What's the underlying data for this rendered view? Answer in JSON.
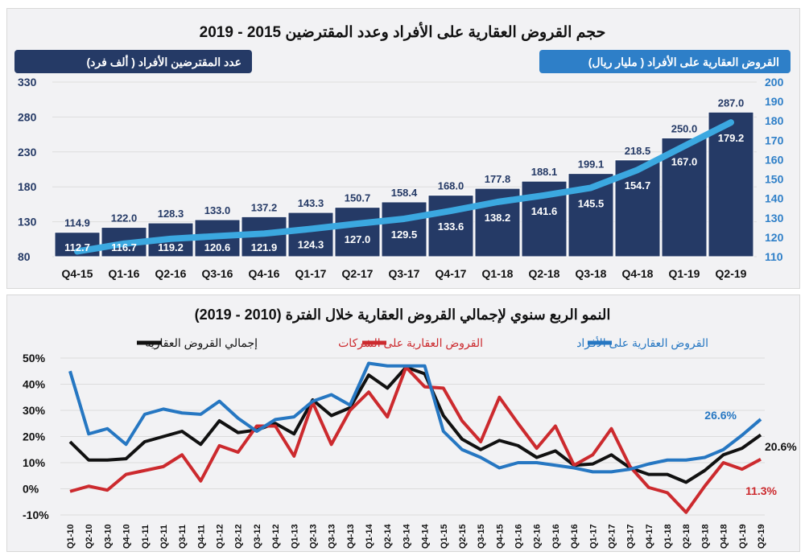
{
  "colors": {
    "bars": "#253a66",
    "line_top": "#3ba8e0",
    "individuals": "#2677c2",
    "corporate": "#cc2a2e",
    "total": "#111111",
    "bar_box": "#253a66",
    "line_box": "#2e7fc8"
  },
  "chart_data": [
    {
      "type": "bar+line",
      "title": "حجم القروض العقارية على الأفراد وعدد المقترضين 2015 - 2019",
      "categories": [
        "Q4-15",
        "Q1-16",
        "Q2-16",
        "Q3-16",
        "Q4-16",
        "Q1-17",
        "Q2-17",
        "Q3-17",
        "Q4-17",
        "Q1-18",
        "Q2-18",
        "Q3-18",
        "Q4-18",
        "Q1-19",
        "Q2-19"
      ],
      "series": [
        {
          "name": "عدد المقترضين الأفراد (  ألف فرد)",
          "type": "bar",
          "axis": "left",
          "values": [
            114.9,
            122.0,
            128.3,
            133.0,
            137.2,
            143.3,
            150.7,
            158.4,
            168.0,
            177.8,
            188.1,
            199.1,
            218.5,
            250.0,
            287.0
          ]
        },
        {
          "name": "القروض العقارية على الأفراد (  مليار ريال)",
          "type": "line",
          "axis": "right",
          "values": [
            112.7,
            116.7,
            119.2,
            120.6,
            121.9,
            124.3,
            127.0,
            129.5,
            133.6,
            138.2,
            141.6,
            145.5,
            154.7,
            167.0,
            179.2
          ]
        }
      ],
      "left_axis": {
        "ylim": [
          80,
          330
        ],
        "ticks": [
          80,
          130,
          180,
          230,
          280,
          330
        ]
      },
      "right_axis": {
        "ylim": [
          110,
          200
        ],
        "ticks": [
          110,
          120,
          130,
          140,
          150,
          160,
          170,
          180,
          190,
          200
        ]
      }
    },
    {
      "type": "line",
      "title": "النمو الربع سنوي لإجمالي القروض العقارية خلال الفترة (2010 - 2019)",
      "categories": [
        "Q1-10",
        "Q2-10",
        "Q3-10",
        "Q4-10",
        "Q1-11",
        "Q2-11",
        "Q3-11",
        "Q4-11",
        "Q1-12",
        "Q2-12",
        "Q3-12",
        "Q4-12",
        "Q1-13",
        "Q2-13",
        "Q3-13",
        "Q4-13",
        "Q1-14",
        "Q2-14",
        "Q3-14",
        "Q4-14",
        "Q1-15",
        "Q2-15",
        "Q3-15",
        "Q4-15",
        "Q1-16",
        "Q2-16",
        "Q3-16",
        "Q4-16",
        "Q1-17",
        "Q2-17",
        "Q3-17",
        "Q4-17",
        "Q1-18",
        "Q2-18",
        "Q3-18",
        "Q4-18",
        "Q1-19",
        "Q2-19"
      ],
      "ylim": [
        -10,
        50
      ],
      "ticks": [
        "-10%",
        "0%",
        "10%",
        "20%",
        "30%",
        "40%",
        "50%"
      ],
      "grid": true,
      "legend": "top",
      "series": [
        {
          "name": "إجمالي القروض العقارية",
          "color_key": "total",
          "end_label": "20.6%",
          "values": [
            18,
            11,
            11,
            11.5,
            18,
            20,
            22,
            17,
            26,
            21.5,
            22.5,
            25,
            21,
            34,
            28,
            31,
            43.5,
            38.5,
            46.5,
            44,
            28,
            19,
            15,
            18.5,
            16.5,
            12,
            14.5,
            9,
            9.5,
            13,
            8,
            5.5,
            5.5,
            2.5,
            7,
            13,
            15.5,
            20.6
          ]
        },
        {
          "name": "القروض العقارية على الشركات",
          "color_key": "corporate",
          "end_label": "11.3%",
          "values": [
            -1,
            1,
            -0.5,
            5.5,
            7,
            8.5,
            13,
            3,
            16.5,
            14,
            24,
            24,
            12.5,
            33,
            17,
            30,
            37,
            27.5,
            46.5,
            39,
            38.5,
            26,
            18,
            35,
            25,
            15.5,
            24,
            9,
            13,
            23,
            8.5,
            0.5,
            -1.5,
            -9,
            1,
            10,
            7.5,
            11.3
          ]
        },
        {
          "name": "القروض العقارية على الأفراد",
          "color_key": "individuals",
          "end_label": "26.6%",
          "values": [
            45,
            21,
            23,
            17,
            28.5,
            30.5,
            29,
            28.5,
            33.5,
            27,
            22,
            26.5,
            27.5,
            33.5,
            36,
            32,
            48,
            47,
            47,
            47,
            22,
            15,
            12,
            8,
            10,
            10,
            9,
            8,
            6.5,
            6.5,
            7.5,
            9.5,
            11,
            11,
            12,
            15,
            20.5,
            26.6
          ]
        }
      ]
    }
  ]
}
